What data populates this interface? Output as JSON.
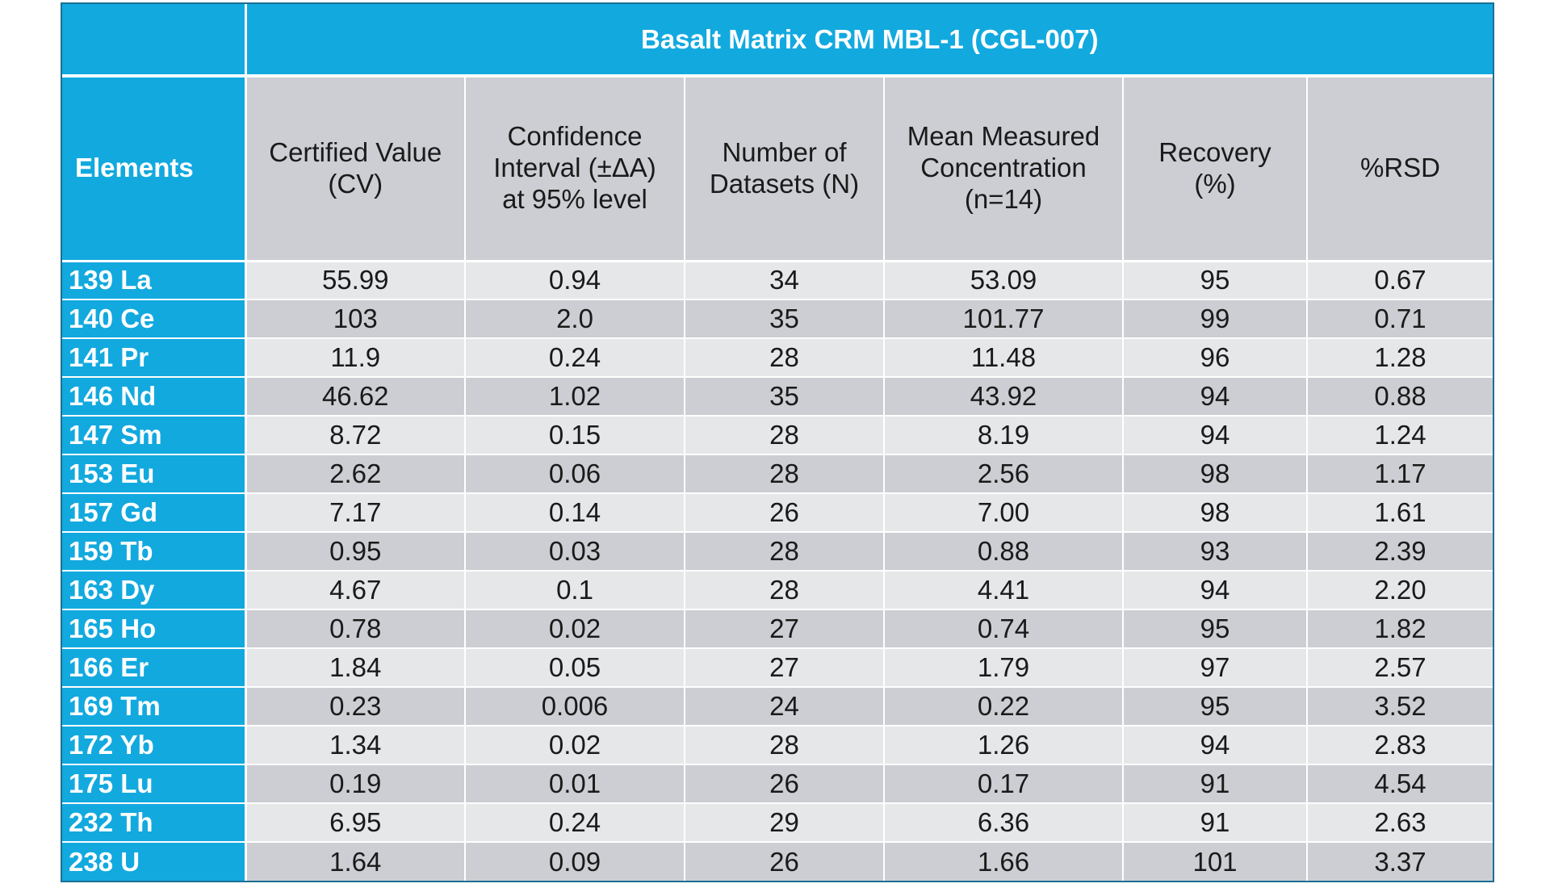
{
  "title": "Basalt Matrix CRM MBL-1 (CGL-007)",
  "columns": [
    "Elements",
    "Certified Value\n(CV)",
    "Confidence\nInterval (±ΔA)\nat 95% level",
    "Number of\nDatasets (N)",
    "Mean Measured\nConcentration\n(n=14)",
    "Recovery\n(%)",
    "%RSD"
  ],
  "rows": [
    {
      "element": "139 La",
      "cv": "55.99",
      "ci": "0.94",
      "n": "34",
      "mean": "53.09",
      "recovery": "95",
      "rsd": "0.67"
    },
    {
      "element": "140 Ce",
      "cv": "103",
      "ci": "2.0",
      "n": "35",
      "mean": "101.77",
      "recovery": "99",
      "rsd": "0.71"
    },
    {
      "element": "141 Pr",
      "cv": "11.9",
      "ci": "0.24",
      "n": "28",
      "mean": "11.48",
      "recovery": "96",
      "rsd": "1.28"
    },
    {
      "element": "146 Nd",
      "cv": "46.62",
      "ci": "1.02",
      "n": "35",
      "mean": "43.92",
      "recovery": "94",
      "rsd": "0.88"
    },
    {
      "element": "147 Sm",
      "cv": "8.72",
      "ci": "0.15",
      "n": "28",
      "mean": "8.19",
      "recovery": "94",
      "rsd": "1.24"
    },
    {
      "element": "153 Eu",
      "cv": "2.62",
      "ci": "0.06",
      "n": "28",
      "mean": "2.56",
      "recovery": "98",
      "rsd": "1.17"
    },
    {
      "element": "157 Gd",
      "cv": "7.17",
      "ci": "0.14",
      "n": "26",
      "mean": "7.00",
      "recovery": "98",
      "rsd": "1.61"
    },
    {
      "element": "159 Tb",
      "cv": "0.95",
      "ci": "0.03",
      "n": "28",
      "mean": "0.88",
      "recovery": "93",
      "rsd": "2.39"
    },
    {
      "element": "163 Dy",
      "cv": "4.67",
      "ci": "0.1",
      "n": "28",
      "mean": "4.41",
      "recovery": "94",
      "rsd": "2.20"
    },
    {
      "element": "165 Ho",
      "cv": "0.78",
      "ci": "0.02",
      "n": "27",
      "mean": "0.74",
      "recovery": "95",
      "rsd": "1.82"
    },
    {
      "element": "166 Er",
      "cv": "1.84",
      "ci": "0.05",
      "n": "27",
      "mean": "1.79",
      "recovery": "97",
      "rsd": "2.57"
    },
    {
      "element": "169 Tm",
      "cv": "0.23",
      "ci": "0.006",
      "n": "24",
      "mean": "0.22",
      "recovery": "95",
      "rsd": "3.52"
    },
    {
      "element": "172 Yb",
      "cv": "1.34",
      "ci": "0.02",
      "n": "28",
      "mean": "1.26",
      "recovery": "94",
      "rsd": "2.83"
    },
    {
      "element": "175 Lu",
      "cv": "0.19",
      "ci": "0.01",
      "n": "26",
      "mean": "0.17",
      "recovery": "91",
      "rsd": "4.54"
    },
    {
      "element": "232 Th",
      "cv": "6.95",
      "ci": "0.24",
      "n": "29",
      "mean": "6.36",
      "recovery": "91",
      "rsd": "2.63"
    },
    {
      "element": "238 U",
      "cv": "1.64",
      "ci": "0.09",
      "n": "26",
      "mean": "1.66",
      "recovery": "101",
      "rsd": "3.37"
    }
  ],
  "colors": {
    "header_blue": "#12a9df",
    "row_light": "#e6e7e9",
    "row_dark": "#ccced3"
  }
}
